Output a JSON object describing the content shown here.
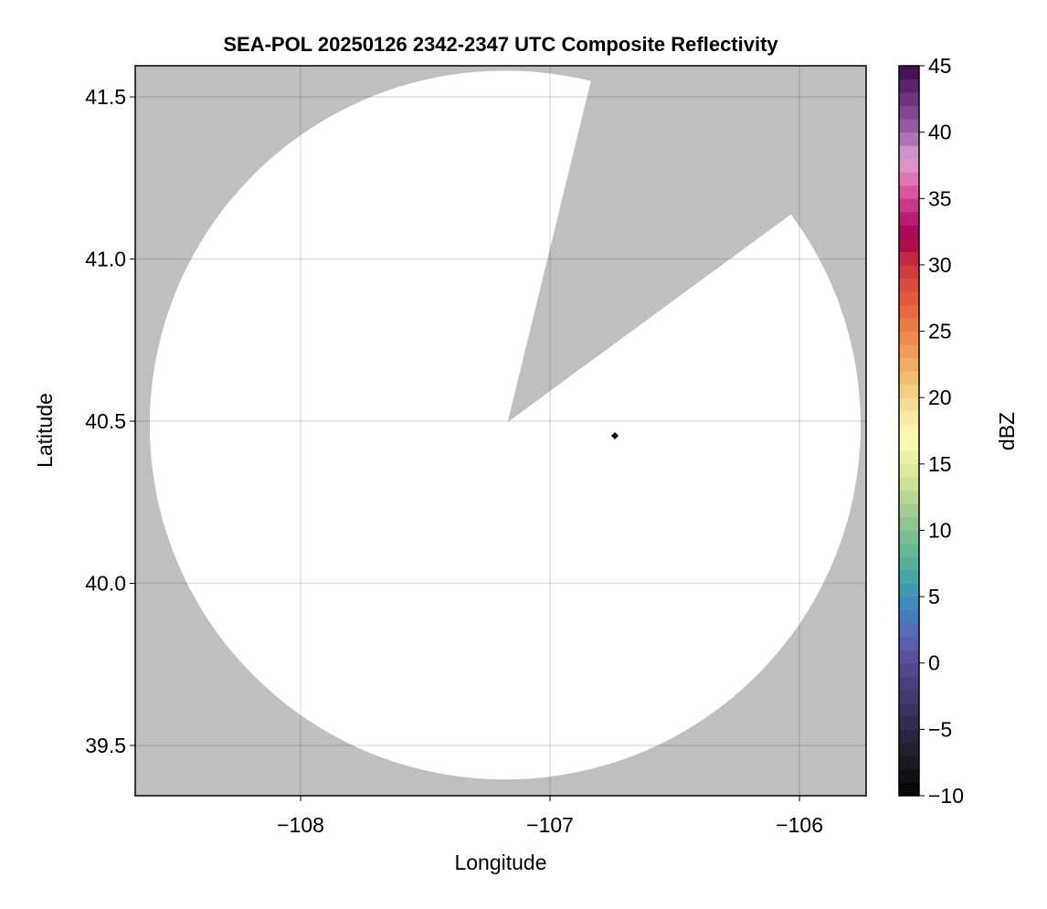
{
  "chart_data": {
    "type": "heatmap",
    "title": "SEA-POL 20250126 2342-2347 UTC Composite Reflectivity",
    "xlabel": "Longitude",
    "ylabel": "Latitude",
    "xlim": [
      -108.663,
      -105.733
    ],
    "ylim": [
      39.345,
      41.596
    ],
    "xticks": [
      -108,
      -107,
      -106
    ],
    "xtick_labels": [
      "−108",
      "−107",
      "−106"
    ],
    "yticks": [
      39.5,
      40.0,
      40.5,
      41.0,
      41.5
    ],
    "ytick_labels": [
      "39.5",
      "40.0",
      "40.5",
      "41.0",
      "41.5"
    ],
    "grid": true,
    "missing_color": "#bfbfbf",
    "no_echo_color": "#ffffff",
    "coverage": {
      "center": [
        -107.18,
        40.488
      ],
      "radius_deg_lon": 1.425,
      "radius_deg_lat": 1.093,
      "blocked_sector": {
        "apex": [
          -107.17,
          40.497
        ],
        "edge_points": [
          [
            -106.843,
            41.528
          ],
          [
            -106.066,
            41.12
          ]
        ]
      }
    },
    "marker": {
      "lon": -106.74,
      "lat": 40.455,
      "shape": "diamond",
      "color": "#000000"
    },
    "colorbar": {
      "label": "dBZ",
      "range": [
        -10,
        45
      ],
      "ticks": [
        -10,
        -5,
        0,
        5,
        10,
        15,
        20,
        25,
        30,
        35,
        40,
        45
      ],
      "tick_labels": [
        "−10",
        "−5",
        "0",
        "5",
        "10",
        "15",
        "20",
        "25",
        "30",
        "35",
        "40",
        "45"
      ],
      "bin_width": 1,
      "colormap_stops": [
        [
          -10,
          "#000000"
        ],
        [
          -9,
          "#0e0e12"
        ],
        [
          -6,
          "#262234"
        ],
        [
          -3,
          "#3e3668"
        ],
        [
          0,
          "#5c4894"
        ],
        [
          2,
          "#5866b6"
        ],
        [
          4,
          "#4282c0"
        ],
        [
          6,
          "#40a0a8"
        ],
        [
          8,
          "#5cb494"
        ],
        [
          11,
          "#98c890"
        ],
        [
          14,
          "#d8e698"
        ],
        [
          17,
          "#fcfab8"
        ],
        [
          19,
          "#f6e4a0"
        ],
        [
          21,
          "#f0c678"
        ],
        [
          24,
          "#f09452"
        ],
        [
          27,
          "#e8603e"
        ],
        [
          30,
          "#cc3440"
        ],
        [
          32,
          "#a4004c"
        ],
        [
          34,
          "#c0287c"
        ],
        [
          36,
          "#e066a6"
        ],
        [
          38,
          "#dca2d2"
        ],
        [
          40,
          "#9e64aa"
        ],
        [
          42,
          "#7a3c88"
        ],
        [
          45,
          "#3a0a4a"
        ]
      ]
    }
  }
}
